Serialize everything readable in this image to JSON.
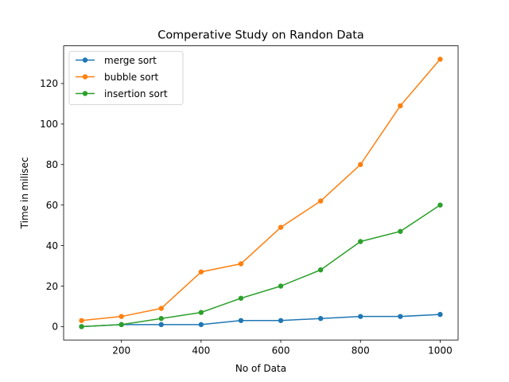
{
  "chart_data": {
    "type": "line",
    "title": "Comperative Study on Randon Data",
    "xlabel": "No of Data",
    "ylabel": "Time in milisec",
    "x": [
      100,
      200,
      300,
      400,
      500,
      600,
      700,
      800,
      900,
      1000
    ],
    "xlim": [
      55,
      1045
    ],
    "ylim": [
      -6.6,
      138.6
    ],
    "xticks": [
      200,
      400,
      600,
      800,
      1000
    ],
    "yticks": [
      0,
      20,
      40,
      60,
      80,
      100,
      120
    ],
    "grid": false,
    "legend_position": "top-left",
    "series": [
      {
        "name": "merge sort",
        "color": "#1f77b4",
        "values": [
          0,
          1,
          1,
          1,
          3,
          3,
          4,
          5,
          5,
          6
        ]
      },
      {
        "name": "bubble sort",
        "color": "#ff7f0e",
        "values": [
          3,
          5,
          9,
          27,
          31,
          49,
          62,
          80,
          109,
          132
        ]
      },
      {
        "name": "insertion sort",
        "color": "#2ca02c",
        "values": [
          0,
          1,
          4,
          7,
          14,
          20,
          28,
          42,
          47,
          60
        ]
      }
    ]
  }
}
